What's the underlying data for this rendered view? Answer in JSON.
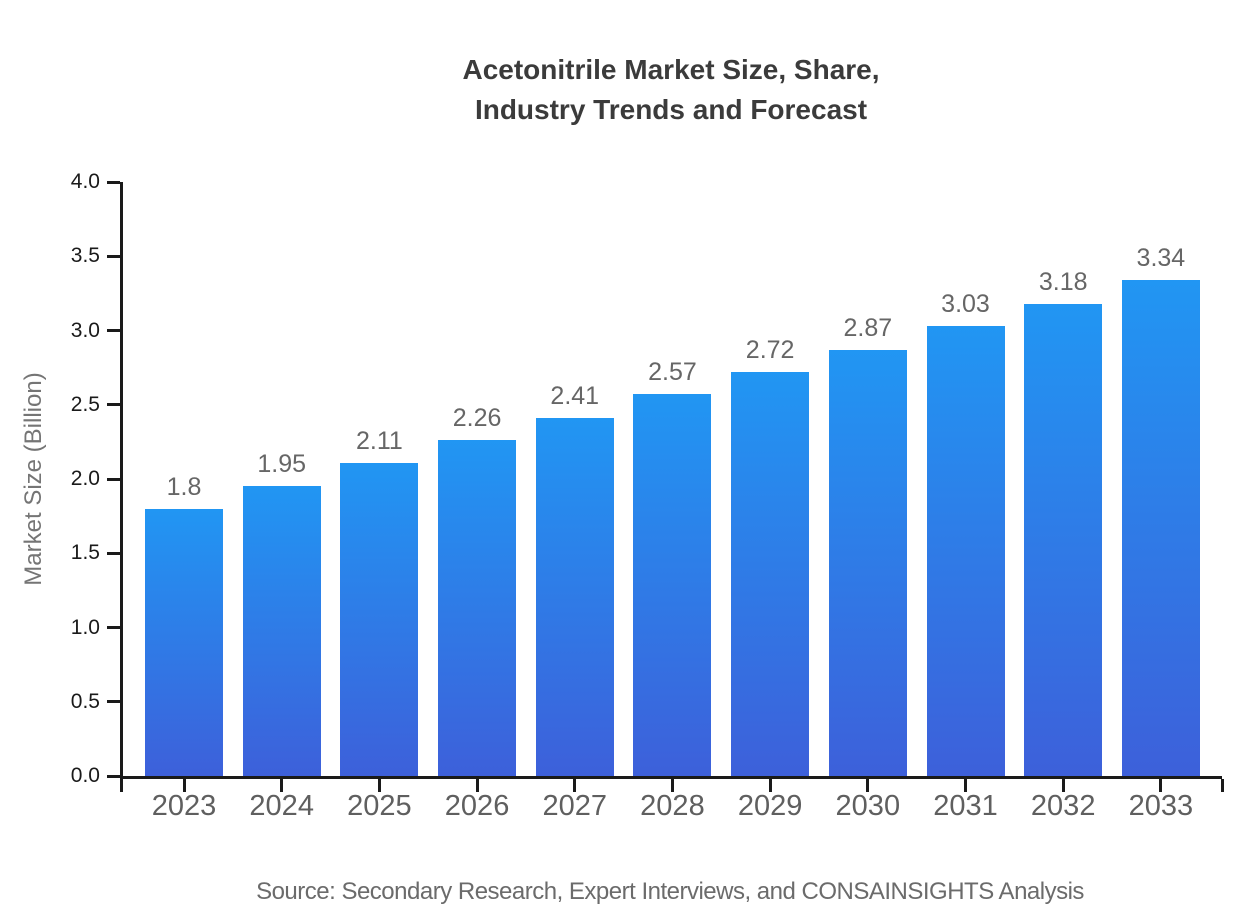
{
  "header": {
    "title_line1": "Acetonitrile Market Size, Share,",
    "title_line2": "Industry Trends and Forecast"
  },
  "chart_data": {
    "type": "bar",
    "title": "Acetonitrile Market Size, Share, Industry Trends and Forecast",
    "categories": [
      "2023",
      "2024",
      "2025",
      "2026",
      "2027",
      "2028",
      "2029",
      "2030",
      "2031",
      "2032",
      "2033"
    ],
    "values": [
      1.8,
      1.95,
      2.11,
      2.26,
      2.41,
      2.57,
      2.72,
      2.87,
      3.03,
      3.18,
      3.34
    ],
    "value_labels": [
      "1.8",
      "1.95",
      "2.11",
      "2.26",
      "2.41",
      "2.57",
      "2.72",
      "2.87",
      "3.03",
      "3.18",
      "3.34"
    ],
    "xlabel": "",
    "ylabel": "Market Size (Billion)",
    "ylim": [
      0.0,
      4.0
    ],
    "ytick_step": 0.5,
    "yticks": [
      "0.0",
      "0.5",
      "1.0",
      "1.5",
      "2.0",
      "2.5",
      "3.0",
      "3.5",
      "4.0"
    ],
    "grid": false,
    "legend": null
  },
  "colors": {
    "bar_gradient_top": "#2196f3",
    "bar_gradient_bottom": "#3d60da",
    "axis": "#1a1a1a",
    "value_label": "#666666",
    "xtick_label": "#5f5f5f",
    "ytick_label": "#1a1a1a",
    "title": "#3b3b3b",
    "y_axis_title": "#757575",
    "source": "#6b6b6b",
    "background": "#ffffff"
  },
  "footer": {
    "source": "Source: Secondary Research, Expert Interviews, and CONSAINSIGHTS Analysis"
  }
}
